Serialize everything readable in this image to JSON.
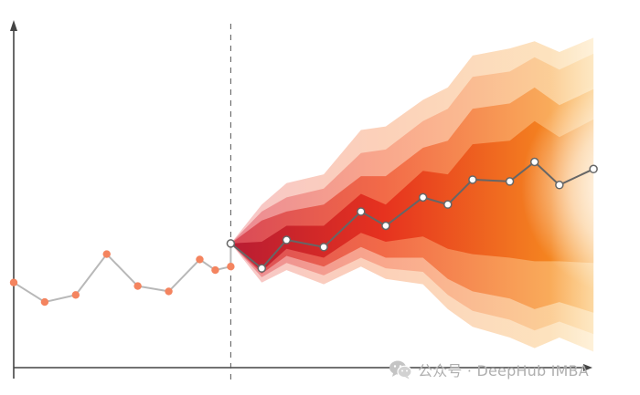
{
  "watermark": {
    "text": "公众号 · DeepHub IMBA",
    "icon": "wechat-icon",
    "color": "#b5b5b5"
  },
  "chart_data": {
    "type": "line",
    "title": "",
    "xlabel": "",
    "ylabel": "",
    "xlim": [
      0,
      20.2
    ],
    "ylim": [
      0,
      9.8
    ],
    "forecast_start": 7,
    "grid": false,
    "tick_labels": false,
    "history": {
      "x": [
        0,
        1,
        2,
        3,
        4,
        5,
        6,
        6.5,
        7
      ],
      "y": [
        2.4,
        1.85,
        2.05,
        3.2,
        2.3,
        2.15,
        3.05,
        2.75,
        2.85
      ]
    },
    "forecast": {
      "x": [
        7,
        8,
        8.8,
        10,
        11.2,
        12,
        13.2,
        14,
        14.8,
        16,
        16.8,
        17.6,
        18.7
      ],
      "y": [
        3.5,
        2.8,
        3.6,
        3.4,
        4.4,
        4.0,
        4.8,
        4.6,
        5.3,
        5.25,
        5.8,
        5.15,
        5.6
      ]
    },
    "intervals": [
      {
        "level": 4,
        "lower": [
          3.5,
          2.4,
          2.75,
          2.35,
          2.85,
          2.5,
          2.35,
          1.65,
          1.15,
          0.85,
          0.55,
          0.85,
          0.45
        ],
        "upper": [
          3.5,
          4.6,
          5.2,
          5.45,
          6.7,
          6.8,
          7.55,
          7.9,
          8.8,
          9.0,
          9.2,
          8.9,
          9.3
        ]
      },
      {
        "level": 3,
        "lower": [
          3.5,
          2.55,
          2.95,
          2.6,
          3.1,
          2.8,
          2.7,
          2.05,
          1.6,
          1.35,
          1.05,
          1.3,
          0.95
        ],
        "upper": [
          3.5,
          4.4,
          4.8,
          5.05,
          6.05,
          6.15,
          6.95,
          7.3,
          8.2,
          8.35,
          8.75,
          8.4,
          8.85
        ]
      },
      {
        "level": 2,
        "lower": [
          3.5,
          2.65,
          3.15,
          2.85,
          3.4,
          3.1,
          3.1,
          2.5,
          2.15,
          1.95,
          1.65,
          1.85,
          1.55
        ],
        "upper": [
          3.5,
          4.15,
          4.4,
          4.6,
          5.4,
          5.4,
          6.2,
          6.4,
          7.3,
          7.45,
          7.9,
          7.4,
          7.85
        ]
      },
      {
        "level": 1,
        "lower": [
          3.5,
          2.72,
          3.35,
          3.1,
          3.8,
          3.55,
          3.7,
          3.35,
          3.2,
          3.1,
          3.0,
          3.0,
          2.95
        ],
        "upper": [
          3.5,
          3.55,
          4.0,
          4.0,
          4.9,
          4.6,
          5.55,
          5.45,
          6.3,
          6.4,
          6.95,
          6.5,
          7.0
        ]
      }
    ],
    "colors": {
      "history_line": "#b8b8b8",
      "history_point": "#f4845f",
      "forecast_line": "#666666",
      "forecast_point_fill": "#ffffff",
      "forecast_point_stroke": "#666666",
      "axis": "#444444",
      "divider": "#555555",
      "band_near": [
        "#f7c6c8",
        "#eb8a94",
        "#d94a58",
        "#b81c33"
      ],
      "band_mid": [
        "#fcd1b9",
        "#f9a78c",
        "#f26a48",
        "#e6321f"
      ],
      "band_far": [
        "#fde7bf",
        "#fcd89a",
        "#fbbc5f",
        "#f89a20"
      ]
    }
  }
}
